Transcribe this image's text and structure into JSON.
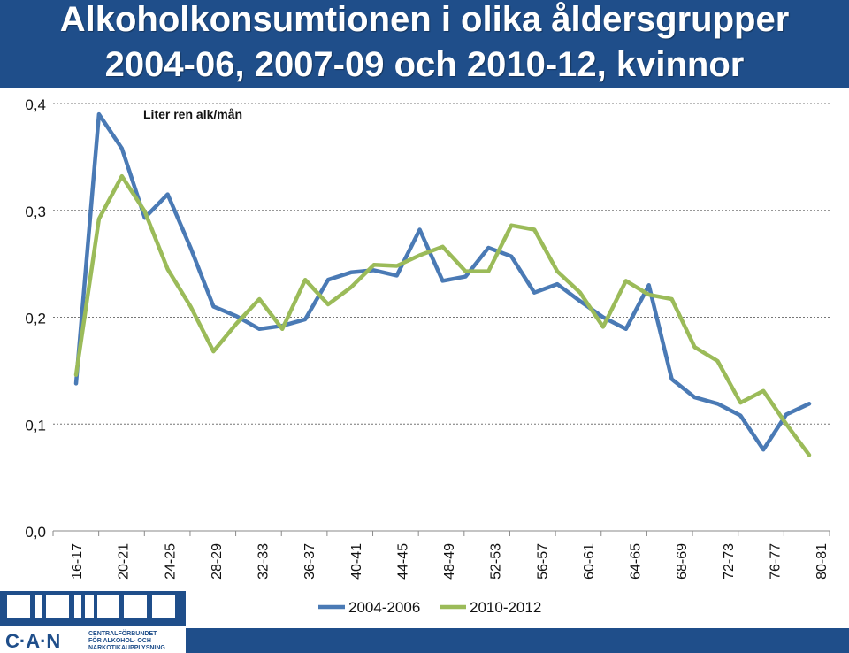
{
  "title": {
    "line1": "Alkoholkonsumtionen i olika åldersgrupper",
    "line2": "2004-06, 2007-09 och 2010-12, kvinnor"
  },
  "logo": {
    "name": "C·A·N",
    "subtitle_line1": "CENTRALFÖRBUNDET",
    "subtitle_line2": "FÖR ALKOHOL- OCH",
    "subtitle_line3": "NARKOTIKAUPPLYSNING"
  },
  "colors": {
    "background": "#1f4e8a",
    "series_2004": "#4a7ab5",
    "series_2010": "#9bbb59"
  },
  "chart_data": {
    "type": "line",
    "ylabel": "Liter ren alk/mån",
    "ylim": [
      0.0,
      0.4
    ],
    "yticks": [
      "0,0",
      "0,1",
      "0,2",
      "0,3",
      "0,4"
    ],
    "ytick_values": [
      0.0,
      0.1,
      0.2,
      0.3,
      0.4
    ],
    "grid": true,
    "legend_position": "bottom",
    "x_labels": [
      "16-17",
      "20-21",
      "24-25",
      "28-29",
      "32-33",
      "36-37",
      "40-41",
      "44-45",
      "48-49",
      "52-53",
      "56-57",
      "60-61",
      "64-65",
      "68-69",
      "72-73",
      "76-77",
      "80-81"
    ],
    "x": [
      16,
      17,
      18,
      19,
      20,
      21,
      22,
      23,
      24,
      25,
      26,
      27,
      28,
      29,
      30,
      31,
      32,
      33,
      34,
      35,
      36,
      37,
      38,
      39,
      40,
      41,
      42,
      43,
      44,
      45,
      46,
      47,
      48,
      49,
      50,
      51,
      52,
      53,
      54,
      55,
      56,
      57,
      58,
      59,
      60,
      61,
      62,
      63,
      64,
      65,
      66,
      67,
      68,
      69,
      70,
      71,
      72,
      73,
      74,
      75,
      76,
      77,
      78,
      79,
      80,
      81
    ],
    "series": [
      {
        "name": "2004-2006",
        "color": "#4a7ab5",
        "x": [
          16,
          18,
          20,
          22,
          24,
          26,
          28,
          30,
          32,
          34,
          36,
          38,
          40,
          42,
          44,
          46,
          48,
          50,
          52,
          54,
          56,
          58,
          60,
          62,
          64,
          66,
          68,
          70,
          72,
          74,
          76,
          78,
          80
        ],
        "values": [
          0.138,
          0.39,
          0.358,
          0.293,
          0.315,
          0.265,
          0.21,
          0.201,
          0.189,
          0.192,
          0.198,
          0.235,
          0.242,
          0.244,
          0.239,
          0.282,
          0.234,
          0.238,
          0.265,
          0.257,
          0.223,
          0.231,
          0.215,
          0.2,
          0.189,
          0.23,
          0.142,
          0.125,
          0.119,
          0.108,
          0.076,
          0.109,
          0.119
        ]
      },
      {
        "name": "2010-2012",
        "color": "#9bbb59",
        "x": [
          16,
          18,
          20,
          22,
          24,
          26,
          28,
          30,
          32,
          34,
          36,
          38,
          40,
          42,
          44,
          46,
          48,
          50,
          52,
          54,
          56,
          58,
          60,
          62,
          64,
          66,
          68,
          70,
          72,
          74,
          76,
          78,
          80
        ],
        "values": [
          0.146,
          0.292,
          0.332,
          0.299,
          0.245,
          0.21,
          0.168,
          0.194,
          0.217,
          0.189,
          0.235,
          0.212,
          0.228,
          0.249,
          0.248,
          0.258,
          0.266,
          0.243,
          0.243,
          0.286,
          0.282,
          0.243,
          0.223,
          0.191,
          0.234,
          0.221,
          0.217,
          0.172,
          0.159,
          0.12,
          0.131,
          0.1,
          0.071
        ]
      }
    ]
  }
}
